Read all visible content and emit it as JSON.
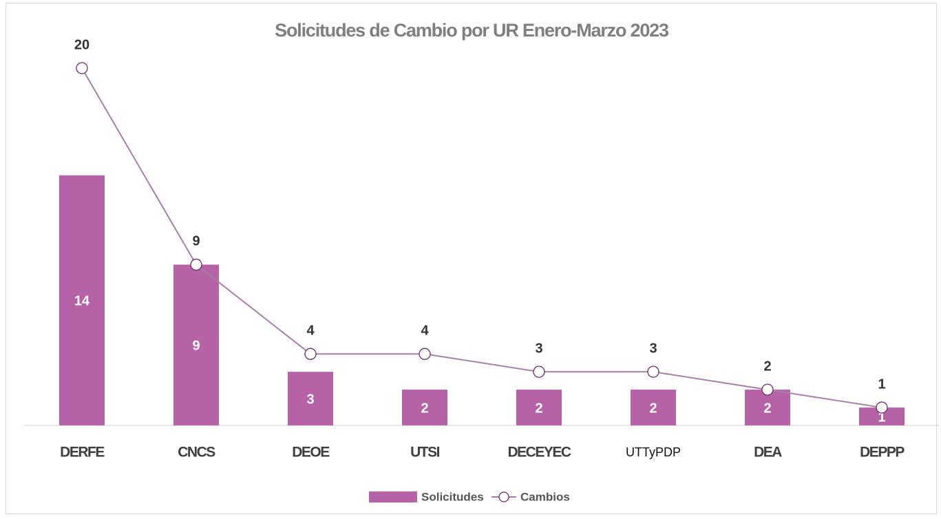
{
  "chart_data": {
    "type": "bar-line",
    "title": "Solicitudes de Cambio por UR Enero-Marzo 2023",
    "categories": [
      "DERFE",
      "CNCS",
      "DEOE",
      "UTSI",
      "DECEYEC",
      "UTTyPDP",
      "DEA",
      "DEPPP"
    ],
    "series": [
      {
        "name": "Solicitudes",
        "type": "bar",
        "color": "#b562a6",
        "values": [
          14,
          9,
          3,
          2,
          2,
          2,
          2,
          1
        ]
      },
      {
        "name": "Cambios",
        "type": "line",
        "color": "#a67fa8",
        "values": [
          20,
          9,
          4,
          4,
          3,
          3,
          2,
          1
        ]
      }
    ],
    "ylim": [
      0,
      20
    ],
    "legend": "bottom"
  }
}
